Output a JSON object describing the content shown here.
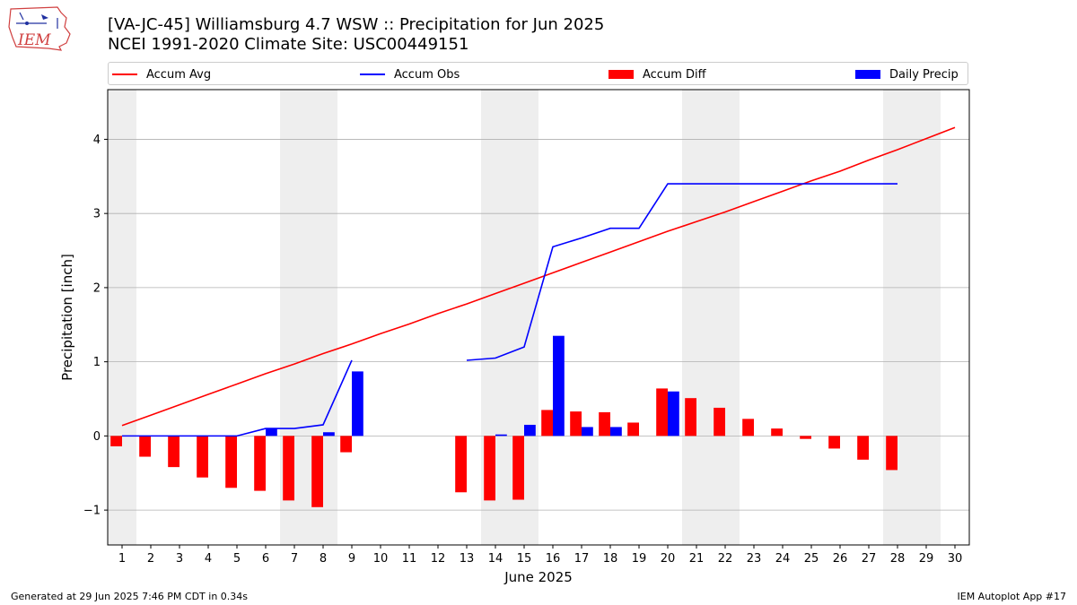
{
  "header": {
    "title_line1": "[VA-JC-45] Williamsburg 4.7 WSW :: Precipitation for Jun 2025",
    "title_line2": "NCEI 1991-2020 Climate Site: USC00449151",
    "logo_text": "IEM"
  },
  "footer": {
    "left": "Generated at 29 Jun 2025 7:46 PM CDT in 0.34s",
    "right": "IEM Autoplot App #17"
  },
  "colors": {
    "accum_avg": "#ff0000",
    "accum_obs": "#0000ff",
    "accum_diff": "#ff0000",
    "daily_precip": "#0000ff",
    "weekend_shade": "#eeeeee",
    "grid": "#b0b0b0"
  },
  "chart_data": {
    "type": "bar",
    "xlabel": "June 2025",
    "ylabel": "Precipitation [inch]",
    "xlim": [
      0.5,
      30.5
    ],
    "ylim": [
      -1.47,
      4.67
    ],
    "yticks": [
      -1,
      0,
      1,
      2,
      3,
      4
    ],
    "ytick_labels": [
      "−1",
      "0",
      "1",
      "2",
      "3",
      "4"
    ],
    "x": [
      1,
      2,
      3,
      4,
      5,
      6,
      7,
      8,
      9,
      10,
      11,
      12,
      13,
      14,
      15,
      16,
      17,
      18,
      19,
      20,
      21,
      22,
      23,
      24,
      25,
      26,
      27,
      28,
      29,
      30
    ],
    "grid": "horizontal",
    "legend_position": "top",
    "weekend_shading": [
      [
        0.5,
        1.5
      ],
      [
        6.5,
        8.5
      ],
      [
        13.5,
        15.5
      ],
      [
        20.5,
        22.5
      ],
      [
        27.5,
        29.5
      ]
    ],
    "series": [
      {
        "name": "Accum Avg",
        "kind": "line",
        "values": [
          0.14,
          0.28,
          0.42,
          0.56,
          0.7,
          0.84,
          0.97,
          1.11,
          1.24,
          1.38,
          1.51,
          1.65,
          1.78,
          1.92,
          2.06,
          2.2,
          2.34,
          2.48,
          2.62,
          2.76,
          2.89,
          3.02,
          3.16,
          3.3,
          3.44,
          3.57,
          3.72,
          3.86,
          4.01,
          4.16
        ]
      },
      {
        "name": "Accum Obs",
        "kind": "line",
        "values": [
          0.0,
          0.0,
          0.0,
          0.0,
          0.0,
          0.1,
          0.1,
          0.15,
          1.02,
          null,
          null,
          null,
          1.02,
          1.05,
          1.2,
          2.55,
          2.67,
          2.8,
          2.8,
          3.4,
          3.4,
          3.4,
          3.4,
          3.4,
          3.4,
          3.4,
          3.4,
          3.4,
          null,
          null
        ]
      },
      {
        "name": "Accum Diff",
        "kind": "bar",
        "values": [
          -0.14,
          -0.28,
          -0.42,
          -0.56,
          -0.7,
          -0.74,
          -0.87,
          -0.96,
          -0.22,
          null,
          null,
          null,
          -0.76,
          -0.87,
          -0.86,
          0.35,
          0.33,
          0.32,
          0.18,
          0.64,
          0.51,
          0.38,
          0.23,
          0.1,
          -0.04,
          -0.17,
          -0.32,
          -0.46,
          null,
          null
        ]
      },
      {
        "name": "Daily Precip",
        "kind": "bar",
        "values": [
          0,
          0,
          0,
          0,
          0,
          0.1,
          0,
          0.05,
          0.87,
          null,
          null,
          null,
          0,
          0.02,
          0.15,
          1.35,
          0.12,
          0.12,
          0,
          0.6,
          0,
          0,
          0,
          0,
          0,
          0,
          0,
          0,
          null,
          null
        ]
      }
    ]
  }
}
